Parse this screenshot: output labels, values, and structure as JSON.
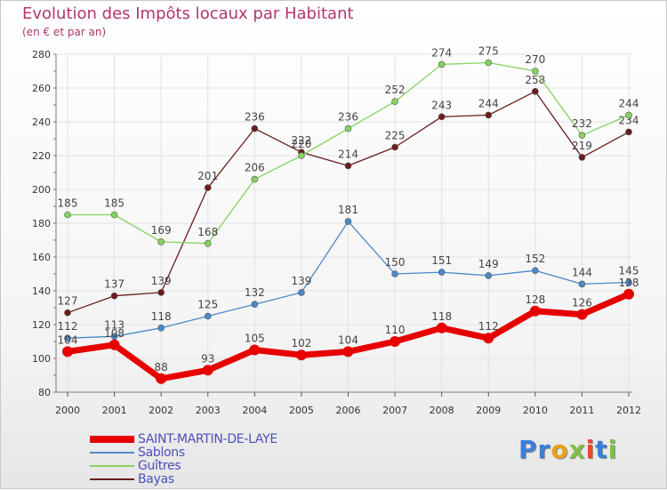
{
  "title": "Evolution des Impôts locaux par Habitant",
  "subtitle": "(en € et par an)",
  "logo": {
    "letters": [
      "P",
      "r",
      "o",
      "x",
      "i",
      "t",
      "i"
    ],
    "colors": [
      "#3b7fd9",
      "#3b7fd9",
      "#e8a21b",
      "#7cc242",
      "#e84a2a",
      "#3b7fd9",
      "#7cc242"
    ]
  },
  "chart_data": {
    "type": "line",
    "title": "Evolution des Impôts locaux par Habitant",
    "subtitle": "(en € et par an)",
    "x": [
      "2000",
      "2001",
      "2002",
      "2003",
      "2004",
      "2005",
      "2006",
      "2007",
      "2008",
      "2009",
      "2010",
      "2011",
      "2012"
    ],
    "ylim": [
      80,
      280
    ],
    "yticks": [
      "80",
      "100",
      "120",
      "140",
      "160",
      "180",
      "200",
      "220",
      "240",
      "260",
      "280"
    ],
    "grid": true,
    "legend_position": "bottom-left",
    "series": [
      {
        "name": "SAINT-MARTIN-DE-LAYE",
        "color": "#e60000",
        "values": [
          104,
          108,
          88,
          93,
          105,
          102,
          104,
          110,
          118,
          112,
          128,
          126,
          138
        ]
      },
      {
        "name": "Sablons",
        "color": "#4a89c8",
        "values": [
          112,
          113,
          118,
          125,
          132,
          139,
          181,
          150,
          151,
          149,
          152,
          144,
          145
        ]
      },
      {
        "name": "Guîtres",
        "color": "#86d160",
        "values": [
          185,
          185,
          169,
          168,
          206,
          220,
          236,
          252,
          274,
          275,
          270,
          232,
          244
        ]
      },
      {
        "name": "Bayas",
        "color": "#6b1b1b",
        "values": [
          127,
          137,
          139,
          201,
          236,
          222,
          214,
          225,
          243,
          244,
          258,
          219,
          234
        ]
      }
    ]
  }
}
